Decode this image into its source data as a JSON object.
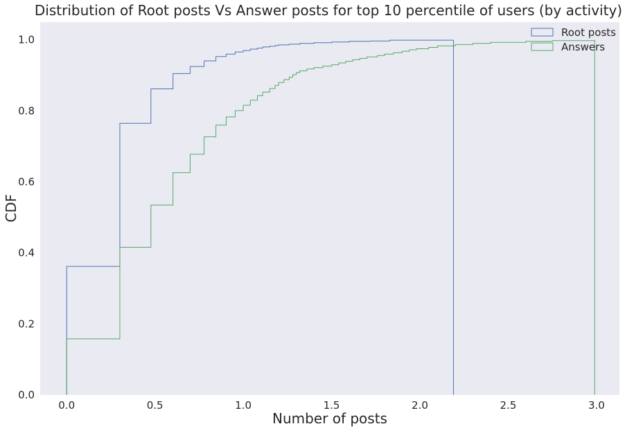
{
  "chart_data": {
    "type": "line",
    "title": "Distribution of Root posts Vs Answer posts for top 10 percentile of users (by activity)",
    "xlabel": "Number of posts",
    "ylabel": "CDF",
    "xlim": [
      -0.15,
      3.13
    ],
    "ylim": [
      0.0,
      1.05
    ],
    "xticks": [
      0.0,
      0.5,
      1.0,
      1.5,
      2.0,
      2.5,
      3.0
    ],
    "xtick_labels": [
      "0.0",
      "0.5",
      "1.0",
      "1.5",
      "2.0",
      "2.5",
      "3.0"
    ],
    "yticks": [
      0.0,
      0.2,
      0.4,
      0.6,
      0.8,
      1.0
    ],
    "ytick_labels": [
      "0.0",
      "0.2",
      "0.4",
      "0.6",
      "0.8",
      "1.0"
    ],
    "grid": false,
    "legend_position": "top-right",
    "series": [
      {
        "name": "Root posts",
        "color": "#4c72b0",
        "steps": [
          [
            0.0,
            0.362
          ],
          [
            0.301,
            0.765
          ],
          [
            0.477,
            0.862
          ],
          [
            0.602,
            0.905
          ],
          [
            0.699,
            0.925
          ],
          [
            0.778,
            0.941
          ],
          [
            0.845,
            0.953
          ],
          [
            0.903,
            0.96
          ],
          [
            0.954,
            0.966
          ],
          [
            1.0,
            0.97
          ],
          [
            1.04,
            0.974
          ],
          [
            1.08,
            0.977
          ],
          [
            1.11,
            0.98
          ],
          [
            1.15,
            0.982
          ],
          [
            1.18,
            0.984
          ],
          [
            1.2,
            0.986
          ],
          [
            1.26,
            0.988
          ],
          [
            1.32,
            0.99
          ],
          [
            1.4,
            0.992
          ],
          [
            1.5,
            0.994
          ],
          [
            1.6,
            0.996
          ],
          [
            1.72,
            0.997
          ],
          [
            1.83,
            0.999
          ],
          [
            2.19,
            1.0
          ]
        ],
        "end_x": 2.19
      },
      {
        "name": "Answers",
        "color": "#55a868",
        "steps": [
          [
            0.0,
            0.158
          ],
          [
            0.301,
            0.416
          ],
          [
            0.477,
            0.535
          ],
          [
            0.602,
            0.626
          ],
          [
            0.699,
            0.678
          ],
          [
            0.778,
            0.727
          ],
          [
            0.845,
            0.76
          ],
          [
            0.903,
            0.783
          ],
          [
            0.954,
            0.801
          ],
          [
            1.0,
            0.816
          ],
          [
            1.04,
            0.83
          ],
          [
            1.08,
            0.843
          ],
          [
            1.11,
            0.853
          ],
          [
            1.15,
            0.863
          ],
          [
            1.18,
            0.872
          ],
          [
            1.2,
            0.88
          ],
          [
            1.23,
            0.888
          ],
          [
            1.26,
            0.895
          ],
          [
            1.28,
            0.902
          ],
          [
            1.3,
            0.908
          ],
          [
            1.32,
            0.913
          ],
          [
            1.36,
            0.918
          ],
          [
            1.4,
            0.922
          ],
          [
            1.45,
            0.926
          ],
          [
            1.5,
            0.93
          ],
          [
            1.54,
            0.935
          ],
          [
            1.58,
            0.94
          ],
          [
            1.62,
            0.944
          ],
          [
            1.66,
            0.948
          ],
          [
            1.7,
            0.952
          ],
          [
            1.76,
            0.956
          ],
          [
            1.8,
            0.96
          ],
          [
            1.85,
            0.964
          ],
          [
            1.9,
            0.968
          ],
          [
            1.94,
            0.972
          ],
          [
            1.98,
            0.975
          ],
          [
            2.05,
            0.979
          ],
          [
            2.1,
            0.983
          ],
          [
            2.2,
            0.987
          ],
          [
            2.3,
            0.99
          ],
          [
            2.4,
            0.993
          ],
          [
            2.6,
            0.996
          ],
          [
            2.75,
            0.998
          ],
          [
            2.99,
            1.0
          ]
        ],
        "end_x": 2.99
      }
    ]
  }
}
